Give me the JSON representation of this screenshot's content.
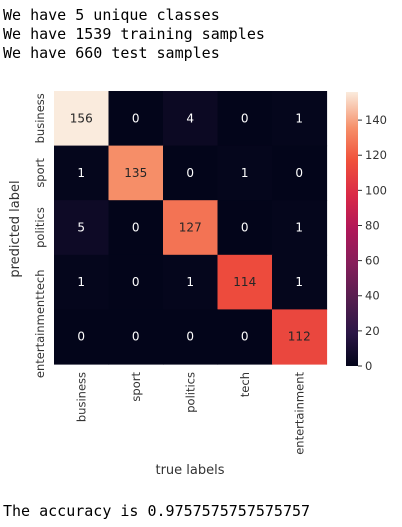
{
  "output": {
    "line1": "We have 5 unique classes",
    "line2": "We have 1539 training samples",
    "line3": "We have 660 test samples",
    "accuracy_line": "The accuracy is 0.9757575757575757"
  },
  "chart_data": {
    "type": "heatmap",
    "xlabel": "true labels",
    "ylabel": "predicted label",
    "x_categories": [
      "business",
      "sport",
      "politics",
      "tech",
      "entertainment"
    ],
    "y_categories": [
      "business",
      "sport",
      "politics",
      "tech",
      "entertainment"
    ],
    "y_tick_labels": [
      "business",
      "sport",
      "politics",
      "tech",
      "entertainment"
    ],
    "values": [
      [
        156,
        0,
        4,
        0,
        1
      ],
      [
        1,
        135,
        0,
        1,
        0
      ],
      [
        5,
        0,
        127,
        0,
        1
      ],
      [
        1,
        0,
        1,
        114,
        1
      ],
      [
        0,
        0,
        0,
        0,
        112
      ]
    ],
    "colormap": "rocket",
    "colorbar": {
      "range": [
        0,
        156
      ],
      "ticks": [
        0,
        20,
        40,
        60,
        80,
        100,
        120,
        140
      ]
    },
    "annotation_colors": {
      "dark_cell": "#ffffff",
      "light_cell": "#262626"
    }
  }
}
